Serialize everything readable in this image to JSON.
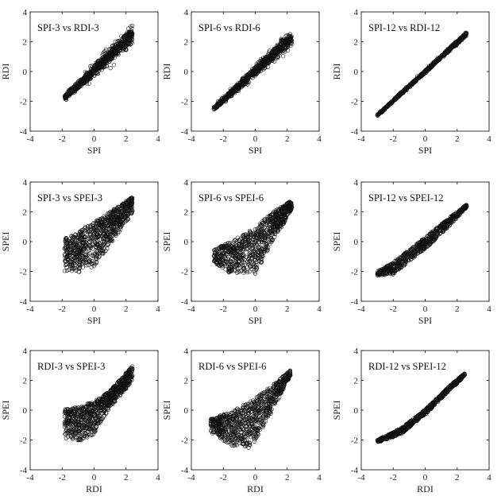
{
  "chart_data": [
    {
      "type": "scatter",
      "title": "SPI-3 vs RDI-3",
      "xlabel": "SPI",
      "ylabel": "RDI",
      "xlim": [
        -4,
        4
      ],
      "ylim": [
        -4,
        4
      ],
      "xticks": [
        "-4",
        "-2",
        "0",
        "2",
        "4"
      ],
      "yticks": [
        "-4",
        "-2",
        "0",
        "2",
        "4"
      ],
      "grid": false,
      "pattern": {
        "kind": "band",
        "x_range": [
          -1.85,
          2.4
        ],
        "slope": 1.0,
        "intercept": 0.1,
        "spread_low": 0.15,
        "spread_high": 0.5,
        "n": 900
      }
    },
    {
      "type": "scatter",
      "title": "SPI-6 vs RDI-6",
      "xlabel": "SPI",
      "ylabel": "RDI",
      "xlim": [
        -4,
        4
      ],
      "ylim": [
        -4,
        4
      ],
      "xticks": [
        "-4",
        "-2",
        "0",
        "2",
        "4"
      ],
      "yticks": [
        "-4",
        "-2",
        "0",
        "2",
        "4"
      ],
      "grid": false,
      "pattern": {
        "kind": "band",
        "x_range": [
          -2.6,
          2.3
        ],
        "slope": 0.98,
        "intercept": 0.05,
        "spread_low": 0.1,
        "spread_high": 0.45,
        "n": 900
      }
    },
    {
      "type": "scatter",
      "title": "SPI-12 vs RDI-12",
      "xlabel": "SPI",
      "ylabel": "RDI",
      "xlim": [
        -4,
        4
      ],
      "ylim": [
        -4,
        4
      ],
      "xticks": [
        "-4",
        "-2",
        "0",
        "2",
        "4"
      ],
      "yticks": [
        "-4",
        "-2",
        "0",
        "2",
        "4"
      ],
      "grid": false,
      "pattern": {
        "kind": "band",
        "x_range": [
          -3.0,
          2.6
        ],
        "slope": 0.98,
        "intercept": 0.0,
        "spread_low": 0.05,
        "spread_high": 0.12,
        "n": 700
      }
    },
    {
      "type": "scatter",
      "title": "SPI-3 vs SPEI-3",
      "xlabel": "SPI",
      "ylabel": "SPEI",
      "xlim": [
        -4,
        4
      ],
      "ylim": [
        -4,
        4
      ],
      "xticks": [
        "-4",
        "-2",
        "0",
        "2",
        "4"
      ],
      "yticks": [
        "-4",
        "-2",
        "0",
        "2",
        "4"
      ],
      "grid": false,
      "pattern": {
        "kind": "fan",
        "x_range": [
          -1.85,
          2.4
        ],
        "upper": [
          [
            -1.85,
            0.2
          ],
          [
            -1,
            0.6
          ],
          [
            0,
            1.4
          ],
          [
            1,
            2.0
          ],
          [
            2.4,
            3.0
          ]
        ],
        "lower": [
          [
            -1.85,
            -2.0
          ],
          [
            -1,
            -2.2
          ],
          [
            0,
            -1.7
          ],
          [
            1,
            -0.2
          ],
          [
            2.4,
            1.9
          ]
        ],
        "n": 900
      }
    },
    {
      "type": "scatter",
      "title": "SPI-6 vs SPEI-6",
      "xlabel": "SPI",
      "ylabel": "SPEI",
      "xlim": [
        -4,
        4
      ],
      "ylim": [
        -4,
        4
      ],
      "xticks": [
        "-4",
        "-2",
        "0",
        "2",
        "4"
      ],
      "yticks": [
        "-4",
        "-2",
        "0",
        "2",
        "4"
      ],
      "grid": false,
      "pattern": {
        "kind": "fan",
        "x_range": [
          -2.6,
          2.3
        ],
        "upper": [
          [
            -2.6,
            -0.5
          ],
          [
            -1.5,
            0.0
          ],
          [
            0,
            1.0
          ],
          [
            1,
            1.9
          ],
          [
            2.3,
            2.8
          ]
        ],
        "lower": [
          [
            -2.6,
            -1.4
          ],
          [
            -1.5,
            -2.2
          ],
          [
            0,
            -2.2
          ],
          [
            1,
            -0.3
          ],
          [
            2.3,
            2.2
          ]
        ],
        "n": 900
      }
    },
    {
      "type": "scatter",
      "title": "SPI-12 vs SPEI-12",
      "xlabel": "SPI",
      "ylabel": "SPEI",
      "xlim": [
        -4,
        4
      ],
      "ylim": [
        -4,
        4
      ],
      "xticks": [
        "-4",
        "-2",
        "0",
        "2",
        "4"
      ],
      "yticks": [
        "-4",
        "-2",
        "0",
        "2",
        "4"
      ],
      "grid": false,
      "pattern": {
        "kind": "fan",
        "x_range": [
          -3.0,
          2.6
        ],
        "upper": [
          [
            -3.0,
            -2.0
          ],
          [
            -2,
            -1.4
          ],
          [
            0,
            0.3
          ],
          [
            1.5,
            1.6
          ],
          [
            2.6,
            2.5
          ]
        ],
        "lower": [
          [
            -3.0,
            -2.3
          ],
          [
            -2,
            -2.2
          ],
          [
            0,
            -0.5
          ],
          [
            1.5,
            1.0
          ],
          [
            2.6,
            2.3
          ]
        ],
        "n": 750
      }
    },
    {
      "type": "scatter",
      "title": "RDI-3 vs SPEI-3",
      "xlabel": "RDI",
      "ylabel": "SPEI",
      "xlim": [
        -4,
        4
      ],
      "ylim": [
        -4,
        4
      ],
      "xticks": [
        "-4",
        "-2",
        "0",
        "2",
        "4"
      ],
      "yticks": [
        "-4",
        "-2",
        "0",
        "2",
        "4"
      ],
      "grid": false,
      "pattern": {
        "kind": "fan",
        "x_range": [
          -1.85,
          2.4
        ],
        "upper": [
          [
            -1.85,
            0.1
          ],
          [
            -1,
            0.2
          ],
          [
            0,
            0.6
          ],
          [
            1,
            1.3
          ],
          [
            2.4,
            3.0
          ]
        ],
        "lower": [
          [
            -1.85,
            -1.9
          ],
          [
            -1,
            -2.2
          ],
          [
            0,
            -1.6
          ],
          [
            1,
            0.2
          ],
          [
            2.4,
            1.9
          ]
        ],
        "n": 900
      }
    },
    {
      "type": "scatter",
      "title": "RDI-6 vs SPEI-6",
      "xlabel": "RDI",
      "ylabel": "SPEI",
      "xlim": [
        -4,
        4
      ],
      "ylim": [
        -4,
        4
      ],
      "xticks": [
        "-4",
        "-2",
        "0",
        "2",
        "4"
      ],
      "yticks": [
        "-4",
        "-2",
        "0",
        "2",
        "4"
      ],
      "grid": false,
      "pattern": {
        "kind": "fan",
        "x_range": [
          -2.8,
          2.2
        ],
        "upper": [
          [
            -2.8,
            -0.6
          ],
          [
            -1.5,
            -0.1
          ],
          [
            0,
            0.8
          ],
          [
            1,
            1.6
          ],
          [
            2.2,
            2.7
          ]
        ],
        "lower": [
          [
            -2.8,
            -1.5
          ],
          [
            -1.5,
            -2.4
          ],
          [
            -0.3,
            -2.6
          ],
          [
            1,
            -0.2
          ],
          [
            2.2,
            2.3
          ]
        ],
        "n": 900
      }
    },
    {
      "type": "scatter",
      "title": "RDI-12 vs SPEI-12",
      "xlabel": "RDI",
      "ylabel": "SPEI",
      "xlim": [
        -4,
        4
      ],
      "ylim": [
        -4,
        4
      ],
      "xticks": [
        "-4",
        "-2",
        "0",
        "2",
        "4"
      ],
      "yticks": [
        "-4",
        "-2",
        "0",
        "2",
        "4"
      ],
      "grid": false,
      "pattern": {
        "kind": "fan",
        "x_range": [
          -3.0,
          2.5
        ],
        "upper": [
          [
            -3.0,
            -2.0
          ],
          [
            -1.5,
            -1.2
          ],
          [
            0,
            0.05
          ],
          [
            1.5,
            1.6
          ],
          [
            2.5,
            2.5
          ]
        ],
        "lower": [
          [
            -3.0,
            -2.2
          ],
          [
            -1.5,
            -1.6
          ],
          [
            0,
            -0.3
          ],
          [
            1.5,
            1.3
          ],
          [
            2.5,
            2.3
          ]
        ],
        "n": 750
      }
    }
  ]
}
